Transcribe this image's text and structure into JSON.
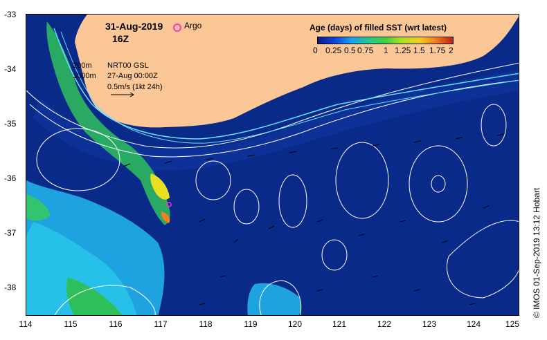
{
  "map": {
    "date_label": "31-Aug-2019",
    "time_label": "16Z",
    "argo_label": "Argo",
    "legend_title": "Age (days) of filled SST (wrt latest)",
    "colorbar_ticks": [
      "0",
      "0.25",
      "0.5",
      "0.75",
      "1",
      "1.25",
      "1.5",
      "1.75",
      "2"
    ],
    "isobath_200": "200m",
    "isobath_1000": "1000m",
    "product_line": "NRT00 GSL",
    "product_date": "27-Aug 00:00Z",
    "current_scale": "0.5m/s (1kt 24h)",
    "credit": "© IMOS 01-Sep-2019 13:12 Hobart",
    "lat_ticks": [
      "-33",
      "-34",
      "-35",
      "-36",
      "-37",
      "-38"
    ],
    "lon_ticks": [
      "114",
      "115",
      "116",
      "117",
      "118",
      "119",
      "120",
      "121",
      "122",
      "123",
      "124",
      "125"
    ],
    "colors": {
      "land": "#fbc796",
      "ocean": "#0a2a8a",
      "argo": "#ff33cc",
      "contour": "#ffffff",
      "coastal_current": "#66e0ff"
    }
  }
}
